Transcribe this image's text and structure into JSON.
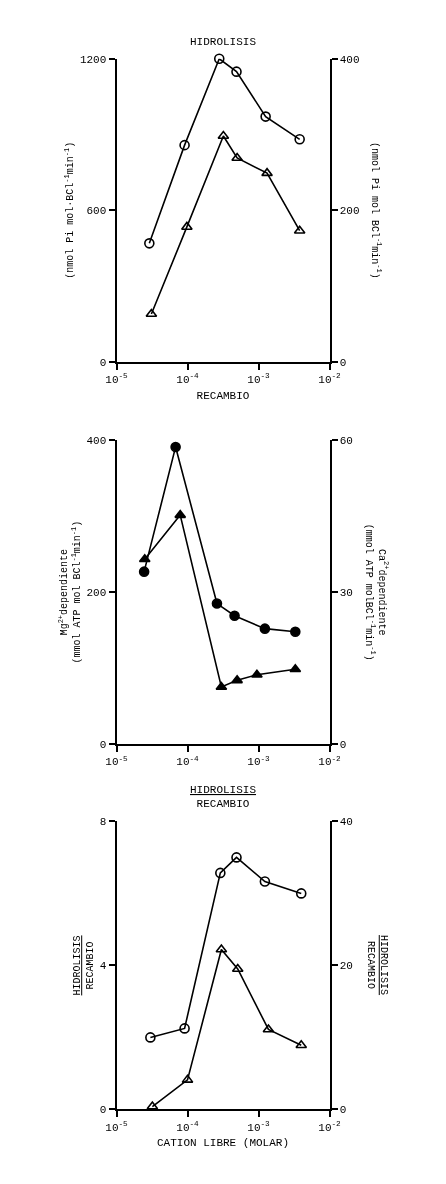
{
  "chart_data": [
    {
      "type": "line",
      "title": "HIDROLISIS",
      "xlabel": "RECAMBIO",
      "ylabel": "(nmol Pi mol·BCl$^{-1}$min$^{-1}$)",
      "y2label": "(nmol Pi mol BCl$^{-1}$min$^{-1}$)",
      "log": "x",
      "xlim": [
        1e-05,
        0.01
      ],
      "xticks": [
        {
          "value": 1e-05,
          "label": "10$^{-5}$"
        },
        {
          "value": 0.0001,
          "label": "10$^{-4}$"
        },
        {
          "value": 0.001,
          "label": "10$^{-3}$"
        },
        {
          "value": 0.01,
          "label": "10$^{-2}$"
        }
      ],
      "ylim": [
        0,
        1200
      ],
      "yticks": [
        0,
        600,
        1200
      ],
      "y2lim": [
        0,
        400
      ],
      "y2ticks": [
        0,
        200,
        400
      ],
      "line_style": "solid",
      "series": [
        {
          "color": "#000000",
          "marker": "circle-open",
          "x": [
            2.9e-05,
            9.1e-05,
            0.00028,
            0.00049,
            0.00126,
            0.0038
          ],
          "values": [
            469,
            858,
            1200,
            1149,
            971,
            881
          ]
        },
        {
          "color": "#000000",
          "marker": "triangle-open",
          "axis": "y2",
          "x": [
            3.1e-05,
            9.8e-05,
            0.00032,
            0.0005,
            0.00132,
            0.0038
          ],
          "values": [
            63,
            178,
            298,
            269,
            249,
            173
          ]
        }
      ]
    },
    {
      "type": "line",
      "ylabel": "Mg$^{2+}$dependiente\n(mmol ATP mol BCl$^{-1}$min$^{-1}$)",
      "y2label": "Ca$^{2+}$dependiente\n(mmol ATP molBCl$^{-1}$min$^{-1}$)",
      "log": "x",
      "xlim": [
        1e-05,
        0.01
      ],
      "xticks": [
        {
          "value": 1e-05,
          "label": "10$^{-5}$"
        },
        {
          "value": 0.0001,
          "label": "10$^{-4}$"
        },
        {
          "value": 0.001,
          "label": "10$^{-3}$"
        },
        {
          "value": 0.01,
          "label": "10$^{-2}$"
        }
      ],
      "ylim": [
        0,
        400
      ],
      "yticks": [
        0,
        200,
        400
      ],
      "y2lim": [
        0,
        60
      ],
      "y2ticks": [
        0,
        30,
        60
      ],
      "line_style": "solid",
      "series": [
        {
          "color": "#000000",
          "marker": "circle",
          "x": [
            2.45e-05,
            6.8e-05,
            0.00026,
            0.00046,
            0.00123,
            0.0033
          ],
          "values": [
            227,
            391,
            185,
            169,
            152,
            148
          ]
        },
        {
          "color": "#000000",
          "marker": "triangle",
          "axis": "y2",
          "x": [
            2.5e-05,
            7.9e-05,
            0.0003,
            0.0005,
            0.00095,
            0.0033
          ],
          "values": [
            36.5,
            45.2,
            11.3,
            12.6,
            13.7,
            14.8
          ]
        }
      ]
    },
    {
      "type": "line",
      "title": "HIDROLISIS\nRECAMBIO",
      "xlabel": "CATION LIBRE (MOLAR)",
      "ylabel": "HIDROLISIS\nRECAMBIO",
      "y2label": "HIDROLISIS\nRECAMBIO",
      "log": "x",
      "xlim": [
        1e-05,
        0.01
      ],
      "xticks": [
        {
          "value": 1e-05,
          "label": "10$^{-5}$"
        },
        {
          "value": 0.0001,
          "label": "10$^{-4}$"
        },
        {
          "value": 0.001,
          "label": "10$^{-3}$"
        },
        {
          "value": 0.01,
          "label": "10$^{-2}$"
        }
      ],
      "ylim": [
        0,
        8
      ],
      "yticks": [
        0,
        4,
        8
      ],
      "y2lim": [
        0,
        40
      ],
      "y2ticks": [
        0,
        20,
        40
      ],
      "line_style": "solid",
      "series": [
        {
          "color": "#000000",
          "marker": "circle-open",
          "x": [
            3e-05,
            9.1e-05,
            0.00029,
            0.00049,
            0.00123,
            0.004
          ],
          "values": [
            2.0,
            2.25,
            6.57,
            7.0,
            6.33,
            6.0
          ]
        },
        {
          "color": "#000000",
          "marker": "triangle-open",
          "axis": "y2",
          "x": [
            3.2e-05,
            0.0001,
            0.0003,
            0.00051,
            0.00138,
            0.004
          ],
          "values": [
            0.4,
            4.1,
            22.2,
            19.5,
            11.1,
            8.9
          ]
        }
      ]
    }
  ]
}
